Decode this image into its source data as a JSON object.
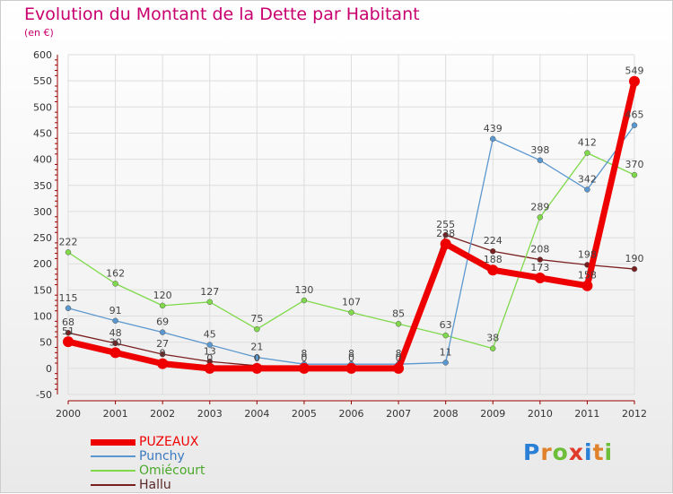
{
  "title": "Evolution du Montant de la Dette par Habitant",
  "subtitle": "(en €)",
  "logo": {
    "letters": [
      "P",
      "r",
      "o",
      "x",
      "i",
      "t",
      "i"
    ],
    "colors": [
      "#2a7fd6",
      "#e0812b",
      "#6dbf3a",
      "#e03a2b",
      "#2a7fd6",
      "#e0812b",
      "#6dbf3a"
    ]
  },
  "chart_data": {
    "type": "line",
    "title": "Evolution du Montant de la Dette par Habitant",
    "ylabel": "(en €)",
    "xlabel": "",
    "x": [
      2000,
      2001,
      2002,
      2003,
      2004,
      2005,
      2006,
      2007,
      2008,
      2009,
      2010,
      2011,
      2012
    ],
    "ylim": [
      -50,
      600
    ],
    "yticks": [
      -50,
      0,
      50,
      100,
      150,
      200,
      250,
      300,
      350,
      400,
      450,
      500,
      550,
      600
    ],
    "grid": true,
    "legend_position": "bottom-left",
    "series": [
      {
        "name": "Hallu",
        "color": "#7a1f1f",
        "width": 1.3,
        "values": [
          68,
          48,
          27,
          13,
          5,
          3,
          3,
          4,
          255,
          224,
          208,
          198,
          190
        ],
        "labels": [
          "68",
          "48",
          "27",
          "13",
          "",
          "",
          "",
          "",
          "255",
          "224",
          "208",
          "198",
          "190"
        ]
      },
      {
        "name": "Omiécourt",
        "color": "#7fd94a",
        "width": 1.3,
        "values": [
          222,
          162,
          120,
          127,
          75,
          130,
          107,
          85,
          63,
          38,
          289,
          412,
          370
        ],
        "labels": [
          "222",
          "162",
          "120",
          "127",
          "75",
          "130",
          "107",
          "85",
          "63",
          "38",
          "289",
          "412",
          "370"
        ]
      },
      {
        "name": "Punchy",
        "color": "#5b97cf",
        "width": 1.3,
        "values": [
          115,
          91,
          69,
          45,
          21,
          8,
          8,
          8,
          11,
          439,
          398,
          342,
          465
        ],
        "labels": [
          "115",
          "91",
          "69",
          "45",
          "21",
          "8",
          "8",
          "8",
          "11",
          "439",
          "398",
          "342",
          "465"
        ]
      },
      {
        "name": "PUZEAUX",
        "color": "#ee0000",
        "width": 7,
        "values": [
          51,
          30,
          9,
          0,
          0,
          0,
          0,
          0,
          238,
          188,
          173,
          158,
          549
        ],
        "labels": [
          "51",
          "30",
          "9",
          "0",
          "0",
          "0",
          "0",
          "0",
          "238",
          "188",
          "173",
          "158",
          "549"
        ]
      }
    ],
    "legend": [
      "PUZEAUX",
      "Punchy",
      "Omiécourt",
      "Hallu"
    ]
  }
}
